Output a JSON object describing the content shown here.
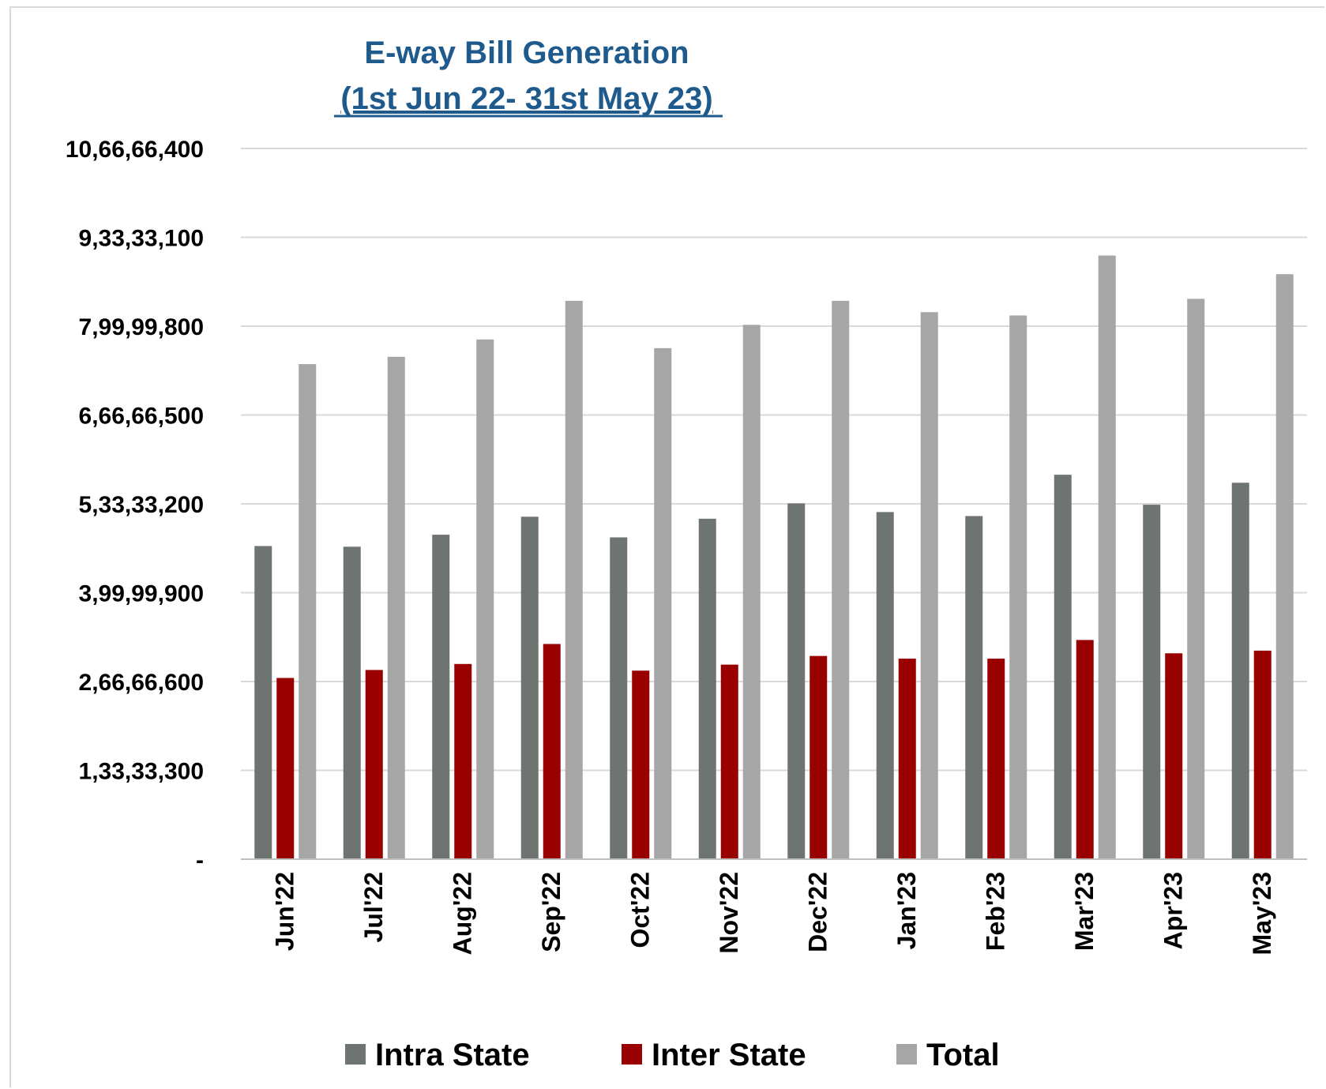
{
  "chart_data": {
    "type": "bar",
    "title": "E-way Bill Generation",
    "subtitle": "(1st Jun 22- 31st May 23)",
    "xlabel": "",
    "ylabel": "",
    "ylim": [
      0,
      106666400
    ],
    "yticks": [
      0,
      13333300,
      26666600,
      39999900,
      53333200,
      66666500,
      79999800,
      93333100,
      106666400
    ],
    "ytick_labels": [
      "-",
      "1,33,33,300",
      "2,66,66,600",
      "3,99,99,900",
      "5,33,33,200",
      "6,66,66,500",
      "7,99,99,800",
      "9,33,33,100",
      "10,66,66,400"
    ],
    "categories": [
      "Jun'22",
      "Jul'22",
      "Aug'22",
      "Sep'22",
      "Oct'22",
      "Nov'22",
      "Dec'22",
      "Jan'23",
      "Feb'23",
      "Mar'23",
      "Apr'23",
      "May'23"
    ],
    "series": [
      {
        "name": "Intra State",
        "color": "#6e7470",
        "values": [
          47000000,
          46900000,
          48700000,
          51400000,
          48300000,
          51100000,
          53400000,
          52100000,
          51500000,
          57700000,
          53200000,
          56500000
        ]
      },
      {
        "name": "Inter State",
        "color": "#990000",
        "values": [
          27200000,
          28400000,
          29300000,
          32300000,
          28300000,
          29200000,
          30500000,
          30100000,
          30100000,
          32900000,
          30900000,
          31300000
        ]
      },
      {
        "name": "Total",
        "color": "#a6a6a6",
        "values": [
          74300000,
          75400000,
          78000000,
          83800000,
          76700000,
          80200000,
          83800000,
          82100000,
          81600000,
          90600000,
          84100000,
          87800000
        ]
      }
    ],
    "grid": true,
    "legend": "bottom"
  }
}
